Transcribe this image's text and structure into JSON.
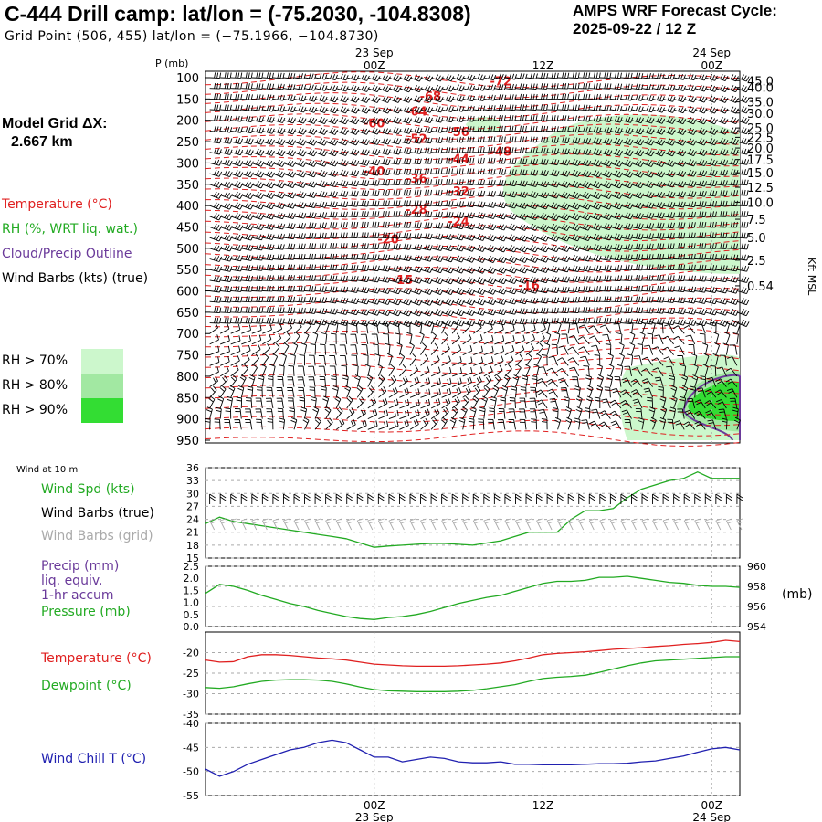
{
  "header": {
    "title": "C-444 Drill camp:  lat/lon = (-75.2030, -104.8308)",
    "subtitle": "Grid Point (506, 455) lat/lon = (−75.1966, −104.8730)",
    "cycle_label": "AMPS WRF Forecast Cycle:",
    "cycle_value": "2025-09-22 / 12  Z"
  },
  "model_grid": {
    "label": "Model Grid ΔX:",
    "value": "2.667 km"
  },
  "legend": {
    "temperature": "Temperature (°C)",
    "rh": "RH (%, WRT liq. wat.)",
    "cloud": "Cloud/Precip Outline",
    "wind": "Wind Barbs (kts) (true)",
    "rh70": "RH > 70%",
    "rh80": "RH > 80%",
    "rh90": "RH > 90%",
    "wind10m": "Wind at 10 m",
    "wind_spd": "Wind Spd (kts)",
    "barbs_true": "Wind Barbs (true)",
    "barbs_grid": "Wind Barbs (grid)",
    "precip1": "Precip (mm)",
    "precip2": "liq. equiv.",
    "precip3": "1-hr accum",
    "pressure": "Pressure (mb)",
    "pressure_unit": "(mb)",
    "t2": "Temperature (°C)",
    "dew": "Dewpoint (°C)",
    "chill": "Wind Chill T (°C)",
    "kft": "Kft MSL",
    "p_label": "P (mb)"
  },
  "colors": {
    "temp": "#e02020",
    "green": "#22aa22",
    "rh70": "#ccf7cc",
    "rh80": "#a2e8a2",
    "rh90": "#33dd33",
    "purple": "#6a3a9a",
    "blue": "#2020b0"
  },
  "chart_data": [
    {
      "type": "heatmap",
      "name": "upper-air cross section",
      "time_labels": [
        {
          "date": "23 Sep",
          "hour": "00Z",
          "t": 12
        },
        {
          "date": "",
          "hour": "12Z",
          "t": 24
        },
        {
          "date": "24 Sep",
          "hour": "00Z",
          "t": 36
        }
      ],
      "x_range_hours": [
        0,
        38
      ],
      "pressure_levels": [
        "100",
        "150",
        "200",
        "250",
        "300",
        "350",
        "400",
        "450",
        "500",
        "550",
        "600",
        "650",
        "700",
        "750",
        "800",
        "850",
        "900",
        "950"
      ],
      "height_kft": [
        "45.0",
        "40.0",
        "35.0",
        "30.0",
        "25.0",
        "22.5",
        "20.0",
        "17.5",
        "15.0",
        "12.5",
        "10.0",
        "7.5",
        "5.0",
        "2.5",
        "0.54"
      ],
      "height_kft_pressure": [
        107,
        123,
        157,
        183,
        218,
        240,
        265,
        292,
        323,
        357,
        392,
        432,
        475,
        528,
        588
      ],
      "temperature_contours": [
        {
          "label": "-72",
          "t": 21,
          "p": 110
        },
        {
          "label": "-68",
          "t": 16,
          "p": 145
        },
        {
          "label": "-64",
          "t": 15,
          "p": 180
        },
        {
          "label": "-60",
          "t": 12,
          "p": 208
        },
        {
          "label": "-56",
          "t": 18,
          "p": 228
        },
        {
          "label": "-52",
          "t": 15,
          "p": 245
        },
        {
          "label": "-48",
          "t": 21,
          "p": 275
        },
        {
          "label": "-44",
          "t": 18,
          "p": 292
        },
        {
          "label": "-40",
          "t": 12,
          "p": 320
        },
        {
          "label": "-36",
          "t": 15,
          "p": 338
        },
        {
          "label": "-32",
          "t": 18,
          "p": 368
        },
        {
          "label": "-28",
          "t": 15,
          "p": 410
        },
        {
          "label": "-24",
          "t": 18,
          "p": 438
        },
        {
          "label": "-20",
          "t": 13,
          "p": 480
        },
        {
          "label": "-16",
          "t": 23,
          "p": 588
        },
        {
          "label": "-15",
          "t": 14,
          "p": 575
        }
      ]
    },
    {
      "type": "line",
      "name": "10 m wind speed",
      "ylim": [
        15,
        36
      ],
      "yticks": [
        "15",
        "18",
        "21",
        "24",
        "27",
        "30",
        "33",
        "36"
      ],
      "x_hours": [
        0,
        1,
        2,
        3,
        4,
        5,
        6,
        7,
        8,
        9,
        10,
        11,
        12,
        13,
        14,
        15,
        16,
        17,
        18,
        19,
        20,
        21,
        22,
        23,
        24,
        25,
        26,
        27,
        28,
        29,
        30,
        31,
        32,
        33,
        34,
        35,
        36,
        37,
        38
      ],
      "values": [
        23,
        24.5,
        23.5,
        23,
        22.5,
        22,
        21.5,
        21,
        20.5,
        20,
        19.5,
        18.5,
        17.5,
        17.8,
        18,
        18.2,
        18.4,
        18.4,
        18.2,
        18,
        18.5,
        19,
        20,
        21,
        21,
        21,
        24,
        26,
        26,
        26.5,
        29,
        31,
        32,
        33,
        33.5,
        35,
        33.5,
        33.5,
        33.5
      ]
    },
    {
      "type": "line",
      "name": "surface pressure",
      "ylim": [
        954,
        960
      ],
      "yticks_right": [
        "954",
        "956",
        "958",
        "960"
      ],
      "yticks_left": [
        "0.0",
        "0.5",
        "1.0",
        "1.5",
        "2.0",
        "2.5"
      ],
      "x_hours": [
        0,
        1,
        2,
        3,
        4,
        5,
        6,
        7,
        8,
        9,
        10,
        11,
        12,
        13,
        14,
        15,
        16,
        17,
        18,
        19,
        20,
        21,
        22,
        23,
        24,
        25,
        26,
        27,
        28,
        29,
        30,
        31,
        32,
        33,
        34,
        35,
        36,
        37,
        38
      ],
      "values": [
        957.3,
        958.2,
        958.0,
        957.6,
        957.1,
        956.7,
        956.3,
        956.0,
        955.6,
        955.3,
        955.0,
        954.8,
        954.7,
        954.9,
        955.0,
        955.2,
        955.5,
        955.9,
        956.3,
        956.6,
        956.9,
        957.1,
        957.5,
        957.9,
        958.3,
        958.5,
        958.5,
        958.6,
        958.9,
        958.9,
        959.0,
        958.8,
        958.6,
        958.4,
        958.3,
        958.1,
        958.0,
        958.0,
        957.9
      ]
    },
    {
      "type": "line",
      "name": "2 m temperature and dewpoint",
      "ylim": [
        -35,
        -15
      ],
      "yticks": [
        "-35",
        "-30",
        "-25",
        "-20"
      ],
      "x_hours": [
        0,
        1,
        2,
        3,
        4,
        5,
        6,
        7,
        8,
        9,
        10,
        11,
        12,
        13,
        14,
        15,
        16,
        17,
        18,
        19,
        20,
        21,
        22,
        23,
        24,
        25,
        26,
        27,
        28,
        29,
        30,
        31,
        32,
        33,
        34,
        35,
        36,
        37,
        38
      ],
      "series": [
        {
          "name": "Temperature",
          "values": [
            -21.8,
            -22.3,
            -22.2,
            -21.0,
            -20.5,
            -20.5,
            -20.7,
            -21.0,
            -21.3,
            -21.5,
            -21.8,
            -22.3,
            -22.8,
            -23.0,
            -23.2,
            -23.3,
            -23.3,
            -23.3,
            -23.2,
            -23.0,
            -22.8,
            -22.5,
            -22.0,
            -21.3,
            -20.5,
            -20.2,
            -20.0,
            -19.8,
            -19.5,
            -19.2,
            -19.0,
            -18.8,
            -18.5,
            -18.3,
            -18.0,
            -17.8,
            -17.5,
            -17.0,
            -17.3
          ]
        },
        {
          "name": "Dewpoint",
          "values": [
            -28.5,
            -28.7,
            -28.3,
            -27.6,
            -27.0,
            -26.7,
            -26.6,
            -26.6,
            -26.7,
            -27.0,
            -27.6,
            -28.4,
            -29.0,
            -29.3,
            -29.4,
            -29.5,
            -29.5,
            -29.5,
            -29.4,
            -29.2,
            -28.8,
            -28.3,
            -27.8,
            -27.0,
            -26.3,
            -26.0,
            -25.8,
            -25.5,
            -24.8,
            -24.0,
            -23.2,
            -22.5,
            -22.0,
            -21.8,
            -21.6,
            -21.4,
            -21.2,
            -21.0,
            -21.0
          ]
        }
      ]
    },
    {
      "type": "line",
      "name": "wind chill",
      "ylim": [
        -55,
        -40
      ],
      "yticks": [
        "-55",
        "-50",
        "-45",
        "-40"
      ],
      "x_hours": [
        0,
        1,
        2,
        3,
        4,
        5,
        6,
        7,
        8,
        9,
        10,
        11,
        12,
        13,
        14,
        15,
        16,
        17,
        18,
        19,
        20,
        21,
        22,
        23,
        24,
        25,
        26,
        27,
        28,
        29,
        30,
        31,
        32,
        33,
        34,
        35,
        36,
        37,
        38
      ],
      "values": [
        -49.5,
        -51.0,
        -50.0,
        -48.5,
        -47.5,
        -46.5,
        -45.5,
        -45.0,
        -44.0,
        -43.5,
        -44.0,
        -45.5,
        -47.0,
        -47.0,
        -48.0,
        -47.5,
        -47.0,
        -47.3,
        -48.0,
        -48.2,
        -48.2,
        -48.0,
        -48.5,
        -48.5,
        -48.6,
        -48.6,
        -48.6,
        -48.5,
        -48.4,
        -48.4,
        -48.3,
        -48.0,
        -47.8,
        -47.3,
        -46.8,
        -46.0,
        -45.3,
        -45.0,
        -45.5
      ]
    }
  ]
}
